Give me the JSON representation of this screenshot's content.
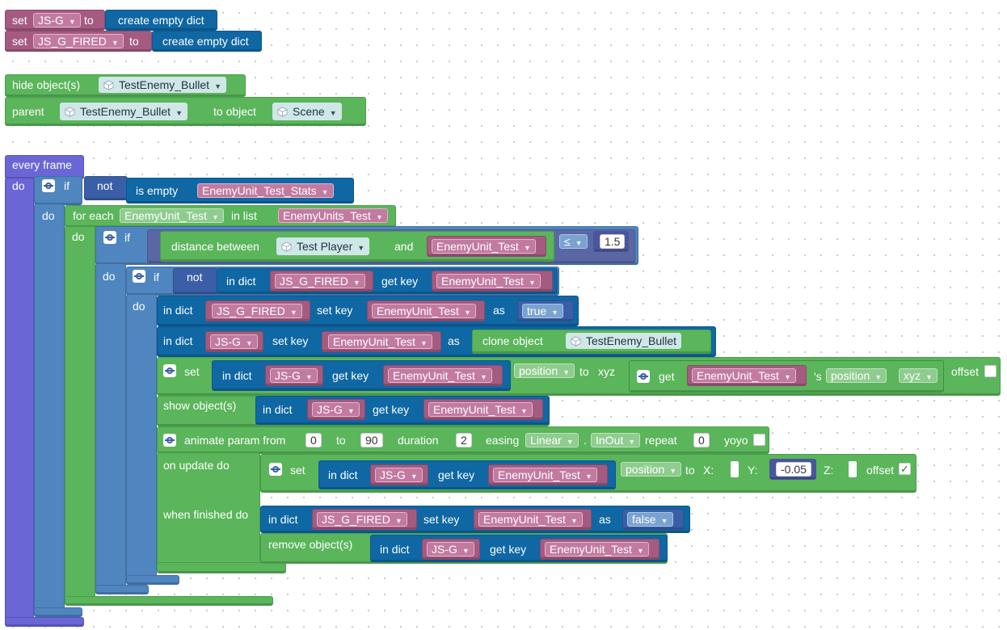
{
  "workspace": {
    "set_js_g": {
      "set": "set",
      "var": "JS-G",
      "to": "to",
      "value": "create empty dict"
    },
    "set_js_g_fired": {
      "set": "set",
      "var": "JS_G_FIRED",
      "to": "to",
      "value": "create empty dict"
    },
    "hide": {
      "label": "hide object(s)",
      "object": "TestEnemy_Bullet"
    },
    "parent": {
      "label": "parent",
      "object": "TestEnemy_Bullet",
      "to_object": "to object",
      "target": "Scene"
    },
    "every_frame": {
      "label": "every frame",
      "do": "do"
    },
    "if1": {
      "if": "if",
      "not": "not",
      "is_empty": "is empty",
      "var": "EnemyUnit_Test_Stats",
      "do": "do"
    },
    "foreach": {
      "label": "for each",
      "item": "EnemyUnit_Test",
      "in_list": "in list",
      "list": "EnemyUnits_Test",
      "do": "do"
    },
    "if2": {
      "if": "if",
      "distance": "distance between",
      "obj_a": "Test Player",
      "and": "and",
      "obj_b": "EnemyUnit_Test",
      "op": "≤",
      "num": "1.5",
      "do": "do"
    },
    "if3": {
      "if": "if",
      "not": "not",
      "in_dict": "in dict",
      "dict": "JS_G_FIRED",
      "get_key": "get key",
      "key": "EnemyUnit_Test",
      "do": "do"
    },
    "setkey1": {
      "in_dict": "in dict",
      "dict": "JS_G_FIRED",
      "set_key": "set key",
      "key": "EnemyUnit_Test",
      "as": "as",
      "value": "true"
    },
    "setkey2": {
      "in_dict": "in dict",
      "dict": "JS-G",
      "set_key": "set key",
      "key": "EnemyUnit_Test",
      "as": "as",
      "clone": "clone object",
      "object": "TestEnemy_Bullet"
    },
    "setpos": {
      "set": "set",
      "in_dict": "in dict",
      "dict": "JS-G",
      "get_key": "get key",
      "key": "EnemyUnit_Test",
      "prop": "position",
      "to": "to",
      "xyz": "xyz",
      "get": "get",
      "obj": "EnemyUnit_Test",
      "apos": "'s",
      "prop2": "position",
      "xyz2": "xyz",
      "offset": "offset"
    },
    "show": {
      "label": "show object(s)",
      "in_dict": "in dict",
      "dict": "JS-G",
      "get_key": "get key",
      "key": "EnemyUnit_Test"
    },
    "animate": {
      "label": "animate param from",
      "from": "0",
      "to": "to",
      "to_val": "90",
      "duration": "duration",
      "dur_val": "2",
      "easing": "easing",
      "ease1": "Linear",
      "dot": ".",
      "ease2": "InOut",
      "repeat": "repeat",
      "rep_val": "0",
      "yoyo": "yoyo",
      "on_update": "on update do",
      "when_finished": "when finished do"
    },
    "setpos2": {
      "set": "set",
      "in_dict": "in dict",
      "dict": "JS-G",
      "get_key": "get key",
      "key": "EnemyUnit_Test",
      "prop": "position",
      "to": "to",
      "x": "X:",
      "y": "Y:",
      "y_val": "-0.05",
      "z": "Z:",
      "offset": "offset",
      "offset_checked": true
    },
    "setkey3": {
      "in_dict": "in dict",
      "dict": "JS_G_FIRED",
      "set_key": "set key",
      "key": "EnemyUnit_Test",
      "as": "as",
      "value": "false"
    },
    "remove": {
      "label": "remove object(s)",
      "in_dict": "in dict",
      "dict": "JS-G",
      "get_key": "get key",
      "key": "EnemyUnit_Test"
    }
  },
  "icons": {
    "dropdown": "dropdown-arrow-icon",
    "gear": "gear-icon",
    "cube": "cube-icon",
    "check": "check-icon"
  },
  "colors": {
    "variable": "#a55b80",
    "object": "#0f67a4",
    "action": "#5bb55b",
    "event": "#6b66d6",
    "logic": "#4f86c0",
    "loop": "#4a74a5",
    "math": "#5b67a5"
  }
}
